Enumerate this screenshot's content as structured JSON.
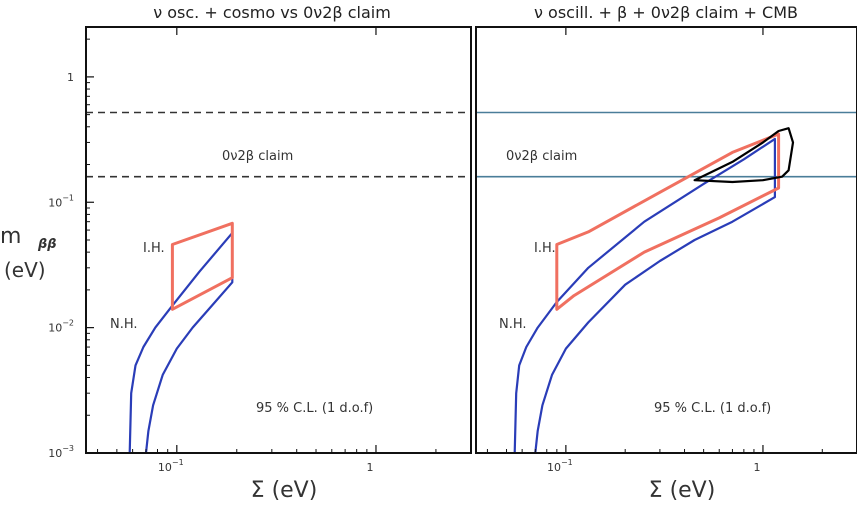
{
  "chart_data": [
    {
      "type": "line",
      "title": "ν osc. + cosmo  vs  0ν2β claim",
      "xlabel": "Σ (eV)",
      "ylabel": "m_ββ (eV)",
      "ylabel_main": "m",
      "ylabel_sub": "ββ",
      "ylabel_unit": "(eV)",
      "x_scale": "log",
      "y_scale": "log",
      "xlim": [
        0.035,
        3.0
      ],
      "ylim": [
        0.001,
        2.5
      ],
      "x_ticks": [
        {
          "value": 0.1,
          "base": "10",
          "exp": "−1"
        },
        {
          "value": 1,
          "label": "1"
        }
      ],
      "y_ticks": [
        {
          "value": 1,
          "label": "1"
        },
        {
          "value": 0.1,
          "base": "10",
          "exp": "−1"
        },
        {
          "value": 0.01,
          "base": "10",
          "exp": "−2"
        },
        {
          "value": 0.001,
          "base": "10",
          "exp": "−3"
        }
      ],
      "claim_band": {
        "label": "0ν2β  claim",
        "low": 0.16,
        "high": 0.52,
        "style": "dashed",
        "color": "#333333"
      },
      "annotation": "95 % C.L.  (1 d.o.f)",
      "series": [
        {
          "name": "N.H.",
          "color": "#2a3db8",
          "x": [
            0.058,
            0.059,
            0.062,
            0.068,
            0.078,
            0.095,
            0.13,
            0.19,
            0.19,
            0.15,
            0.12,
            0.1,
            0.085,
            0.076,
            0.072,
            0.07
          ],
          "y": [
            0.001,
            0.003,
            0.005,
            0.007,
            0.01,
            0.015,
            0.028,
            0.057,
            0.023,
            0.015,
            0.01,
            0.0068,
            0.0042,
            0.0024,
            0.0015,
            0.001
          ]
        },
        {
          "name": "I.H.",
          "color": "#f07060",
          "closed": true,
          "x": [
            0.095,
            0.19,
            0.19,
            0.095
          ],
          "y": [
            0.046,
            0.068,
            0.025,
            0.014
          ]
        }
      ]
    },
    {
      "type": "line",
      "title": "ν oscill. +  β +  0ν2β  claim + CMB",
      "xlabel": "Σ (eV)",
      "x_scale": "log",
      "y_scale": "log",
      "xlim": [
        0.035,
        3.0
      ],
      "ylim": [
        0.001,
        2.5
      ],
      "x_ticks": [
        {
          "value": 0.1,
          "base": "10",
          "exp": "−1"
        },
        {
          "value": 1,
          "label": "1"
        }
      ],
      "claim_band": {
        "label": "0ν2β  claim",
        "low": 0.16,
        "high": 0.52,
        "style": "solid",
        "color": "#4a7d99"
      },
      "annotation": "95 % C.L.  (1 d.o.f)",
      "series": [
        {
          "name": "N.H.",
          "color": "#2a3db8",
          "x": [
            0.055,
            0.056,
            0.058,
            0.063,
            0.072,
            0.09,
            0.13,
            0.25,
            0.5,
            0.8,
            1.15,
            1.15,
            0.7,
            0.45,
            0.3,
            0.2,
            0.13,
            0.1,
            0.085,
            0.076,
            0.072,
            0.07
          ],
          "y": [
            0.001,
            0.003,
            0.005,
            0.007,
            0.01,
            0.016,
            0.03,
            0.07,
            0.14,
            0.22,
            0.32,
            0.11,
            0.07,
            0.05,
            0.034,
            0.022,
            0.011,
            0.0068,
            0.0042,
            0.0024,
            0.0015,
            0.001
          ]
        },
        {
          "name": "I.H.",
          "color": "#f07060",
          "closed": true,
          "x": [
            0.09,
            0.13,
            0.3,
            0.7,
            1.2,
            1.2,
            0.6,
            0.25,
            0.11,
            0.09
          ],
          "y": [
            0.046,
            0.058,
            0.12,
            0.25,
            0.35,
            0.13,
            0.075,
            0.04,
            0.018,
            0.014
          ]
        },
        {
          "name": "",
          "color": "#000000",
          "closed": true,
          "x": [
            0.45,
            0.7,
            1.0,
            1.2,
            1.35,
            1.42,
            1.35,
            1.25,
            1.0,
            0.7,
            0.45
          ],
          "y": [
            0.15,
            0.21,
            0.3,
            0.37,
            0.39,
            0.3,
            0.18,
            0.16,
            0.15,
            0.145,
            0.15
          ]
        }
      ]
    }
  ]
}
